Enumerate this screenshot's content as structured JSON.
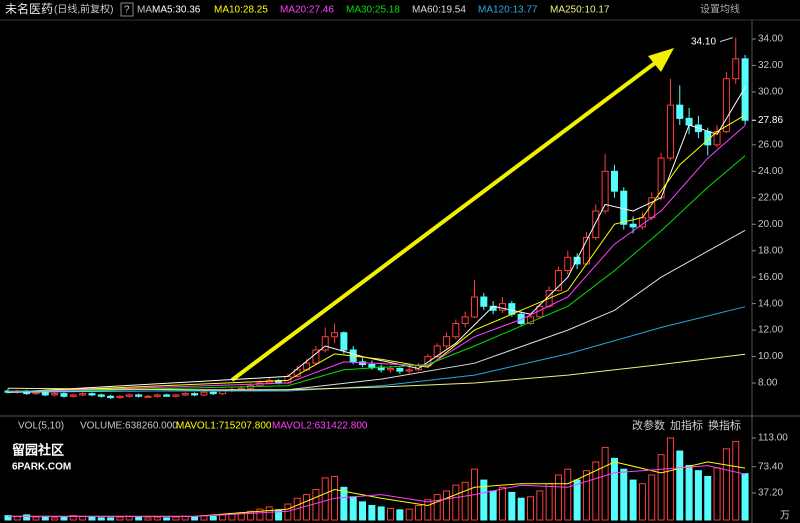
{
  "header": {
    "name": "未名医药",
    "period": "(日线,前复权)",
    "help": "?",
    "ma_prefix": "MA",
    "settings": "设置均线"
  },
  "chart_data": [
    {
      "type": "candlestick",
      "color_up": "#ff3c3c",
      "color_down": "#54fcfc",
      "ylim": [
        6.34,
        34.83
      ],
      "yticks": [
        {
          "value": 8,
          "label": "8.00"
        },
        {
          "value": 10,
          "label": "10.00"
        },
        {
          "value": 12,
          "label": "12.00"
        },
        {
          "value": 14,
          "label": "14.00"
        },
        {
          "value": 16,
          "label": "16.00"
        },
        {
          "value": 18,
          "label": "18.00"
        },
        {
          "value": 20,
          "label": "20.00"
        },
        {
          "value": 22,
          "label": "22.00"
        },
        {
          "value": 24,
          "label": "24.00"
        },
        {
          "value": 26,
          "label": "26.00"
        },
        {
          "value": 30,
          "label": "30.00"
        },
        {
          "value": 32,
          "label": "32.00"
        },
        {
          "value": 34,
          "label": "34.00"
        }
      ],
      "last_price": {
        "value": 27.86,
        "label": "27.86"
      },
      "annotation": {
        "value": 34.1,
        "label": "34.10"
      },
      "candles": [
        [
          7.4,
          7.6,
          7.2,
          7.3
        ],
        [
          7.3,
          7.5,
          7.2,
          7.4
        ],
        [
          7.4,
          7.5,
          7.1,
          7.2
        ],
        [
          7.2,
          7.4,
          7.1,
          7.3
        ],
        [
          7.3,
          7.4,
          7.0,
          7.1
        ],
        [
          7.1,
          7.3,
          7.0,
          7.2
        ],
        [
          7.2,
          7.3,
          6.9,
          7.0
        ],
        [
          7.0,
          7.2,
          6.9,
          7.1
        ],
        [
          7.1,
          7.3,
          7.0,
          7.2
        ],
        [
          7.2,
          7.3,
          7.0,
          7.1
        ],
        [
          7.1,
          7.2,
          6.9,
          7.0
        ],
        [
          7.0,
          7.1,
          6.8,
          6.9
        ],
        [
          6.9,
          7.1,
          6.8,
          7.0
        ],
        [
          7.0,
          7.2,
          6.9,
          7.1
        ],
        [
          7.1,
          7.2,
          6.9,
          7.0
        ],
        [
          7.0,
          7.1,
          6.9,
          7.0
        ],
        [
          7.0,
          7.2,
          6.9,
          7.1
        ],
        [
          7.1,
          7.2,
          7.0,
          7.0
        ],
        [
          7.0,
          7.1,
          6.9,
          7.1
        ],
        [
          7.1,
          7.3,
          7.0,
          7.2
        ],
        [
          7.2,
          7.3,
          7.0,
          7.1
        ],
        [
          7.1,
          7.4,
          7.0,
          7.3
        ],
        [
          7.3,
          7.4,
          7.1,
          7.2
        ],
        [
          7.2,
          7.5,
          7.1,
          7.4
        ],
        [
          7.4,
          7.7,
          7.3,
          7.5
        ],
        [
          7.5,
          7.8,
          7.4,
          7.6
        ],
        [
          7.6,
          8.0,
          7.5,
          7.8
        ],
        [
          7.8,
          8.2,
          7.7,
          8.0
        ],
        [
          8.0,
          8.4,
          7.9,
          8.2
        ],
        [
          8.2,
          8.3,
          7.9,
          8.0
        ],
        [
          8.0,
          8.7,
          7.9,
          8.5
        ],
        [
          8.5,
          9.3,
          8.4,
          9.0
        ],
        [
          9.0,
          9.8,
          8.9,
          9.5
        ],
        [
          9.5,
          10.8,
          9.4,
          10.5
        ],
        [
          10.5,
          12.2,
          10.3,
          11.5
        ],
        [
          11.5,
          12.5,
          11.0,
          11.8
        ],
        [
          11.8,
          11.9,
          10.2,
          10.5
        ],
        [
          10.5,
          10.8,
          9.4,
          9.6
        ],
        [
          9.6,
          9.9,
          9.2,
          9.4
        ],
        [
          9.4,
          9.7,
          9.0,
          9.2
        ],
        [
          9.2,
          9.4,
          8.8,
          9.0
        ],
        [
          9.0,
          9.3,
          8.8,
          9.1
        ],
        [
          9.1,
          9.2,
          8.7,
          8.9
        ],
        [
          8.9,
          9.2,
          8.7,
          9.0
        ],
        [
          9.0,
          9.5,
          8.9,
          9.3
        ],
        [
          9.3,
          10.2,
          9.2,
          10.0
        ],
        [
          10.0,
          11.0,
          9.9,
          10.8
        ],
        [
          10.8,
          11.8,
          10.6,
          11.5
        ],
        [
          11.5,
          12.8,
          11.3,
          12.5
        ],
        [
          12.5,
          13.4,
          12.2,
          13.0
        ],
        [
          13.0,
          15.8,
          12.9,
          14.5
        ],
        [
          14.5,
          14.8,
          13.5,
          13.8
        ],
        [
          13.8,
          14.2,
          13.2,
          13.5
        ],
        [
          13.5,
          14.5,
          13.3,
          14.0
        ],
        [
          14.0,
          14.2,
          13.0,
          13.2
        ],
        [
          13.2,
          13.4,
          12.3,
          12.5
        ],
        [
          12.5,
          13.2,
          12.4,
          13.0
        ],
        [
          13.0,
          14.0,
          12.9,
          13.8
        ],
        [
          13.8,
          15.3,
          13.7,
          15.0
        ],
        [
          15.0,
          16.8,
          14.9,
          16.5
        ],
        [
          16.5,
          18.0,
          16.2,
          17.5
        ],
        [
          17.5,
          17.8,
          16.6,
          17.0
        ],
        [
          17.0,
          19.4,
          16.9,
          19.0
        ],
        [
          19.0,
          21.5,
          18.8,
          21.0
        ],
        [
          21.0,
          25.3,
          20.8,
          24.0
        ],
        [
          24.0,
          24.5,
          22.0,
          22.5
        ],
        [
          22.5,
          22.8,
          19.6,
          20.0
        ],
        [
          20.0,
          20.6,
          19.3,
          19.8
        ],
        [
          19.8,
          20.9,
          19.6,
          20.5
        ],
        [
          20.5,
          22.4,
          20.3,
          22.0
        ],
        [
          22.0,
          25.4,
          21.8,
          25.0
        ],
        [
          25.0,
          31.0,
          24.8,
          29.0
        ],
        [
          29.0,
          30.5,
          27.5,
          28.0
        ],
        [
          28.0,
          28.8,
          26.8,
          27.5
        ],
        [
          27.5,
          28.2,
          26.5,
          27.0
        ],
        [
          27.0,
          27.3,
          25.2,
          26.0
        ],
        [
          26.0,
          27.5,
          25.8,
          27.0
        ],
        [
          27.0,
          31.5,
          26.9,
          31.0
        ],
        [
          31.0,
          34.1,
          30.6,
          32.5
        ],
        [
          32.5,
          32.8,
          27.5,
          27.86
        ]
      ],
      "series": [
        {
          "label": "MA5:30.36",
          "color": "#ffffff",
          "x": [
            0,
            30,
            34,
            38,
            44,
            48,
            52,
            56,
            60,
            64,
            67,
            70,
            73,
            76,
            79
          ],
          "values": [
            7.3,
            8.5,
            10.8,
            10.0,
            9.1,
            11.0,
            13.8,
            13.2,
            16.0,
            21.5,
            21.0,
            22.0,
            27.5,
            26.8,
            30.36
          ]
        },
        {
          "label": "MA10:28.25",
          "color": "#ffff00",
          "x": [
            0,
            30,
            35,
            40,
            45,
            50,
            55,
            60,
            65,
            68,
            72,
            76,
            79
          ],
          "values": [
            7.3,
            8.2,
            10.2,
            9.8,
            9.2,
            12.0,
            13.5,
            15.0,
            20.0,
            20.5,
            24.5,
            27.0,
            28.25
          ]
        },
        {
          "label": "MA20:27.46",
          "color": "#ff40ff",
          "x": [
            0,
            30,
            36,
            45,
            50,
            55,
            60,
            65,
            70,
            75,
            79
          ],
          "values": [
            7.3,
            8.0,
            9.6,
            9.3,
            11.5,
            12.8,
            14.5,
            18.5,
            21.0,
            25.0,
            27.46
          ]
        },
        {
          "label": "MA30:25.18",
          "color": "#00e000",
          "x": [
            0,
            30,
            36,
            45,
            50,
            55,
            60,
            65,
            70,
            75,
            79
          ],
          "values": [
            7.3,
            7.8,
            9.0,
            9.4,
            10.8,
            12.3,
            13.8,
            16.5,
            19.5,
            22.8,
            25.18
          ]
        },
        {
          "label": "MA60:19.54",
          "color": "#dddddd",
          "x": [
            0,
            30,
            40,
            50,
            60,
            65,
            70,
            79
          ],
          "values": [
            7.3,
            7.5,
            8.3,
            9.5,
            12.0,
            13.5,
            16.0,
            19.54
          ]
        },
        {
          "label": "MA120:13.77",
          "color": "#2aa8e0",
          "x": [
            0,
            30,
            40,
            50,
            60,
            70,
            79
          ],
          "values": [
            7.4,
            7.4,
            7.8,
            8.6,
            10.2,
            12.2,
            13.77
          ]
        },
        {
          "label": "MA250:10.17",
          "color": "#f0f080",
          "x": [
            0,
            20,
            30,
            40,
            50,
            60,
            70,
            79
          ],
          "values": [
            7.6,
            7.5,
            7.5,
            7.7,
            8.0,
            8.6,
            9.4,
            10.17
          ]
        }
      ]
    },
    {
      "type": "volume",
      "title": "VOL(5,10)",
      "readout": "VOLUME:638260.000",
      "unit": "万",
      "ylim": [
        0,
        124
      ],
      "yticks": [
        {
          "value": 37.2,
          "label": "37.20"
        },
        {
          "value": 73.4,
          "label": "73.40"
        },
        {
          "value": 113,
          "label": "113.00"
        }
      ],
      "buttons": [
        "改参数",
        "加指标",
        "换指标"
      ],
      "values": [
        6,
        5,
        7,
        4,
        5,
        3,
        4,
        6,
        5,
        4,
        3,
        3,
        4,
        5,
        4,
        3,
        4,
        3,
        4,
        5,
        4,
        6,
        5,
        7,
        9,
        10,
        12,
        15,
        18,
        14,
        22,
        30,
        35,
        42,
        58,
        60,
        45,
        32,
        25,
        20,
        18,
        16,
        14,
        15,
        20,
        28,
        35,
        40,
        48,
        52,
        70,
        55,
        40,
        45,
        38,
        30,
        32,
        40,
        50,
        62,
        70,
        55,
        68,
        80,
        100,
        85,
        70,
        55,
        50,
        62,
        90,
        113,
        95,
        75,
        68,
        60,
        72,
        98,
        108,
        63.826
      ],
      "series": [
        {
          "label": "MAVOL1:715207.800",
          "color": "#ffff00",
          "x": [
            0,
            20,
            30,
            35,
            40,
            45,
            50,
            55,
            60,
            65,
            70,
            75,
            79
          ],
          "values": [
            5,
            5,
            15,
            42,
            30,
            20,
            45,
            50,
            50,
            80,
            65,
            80,
            71.52
          ]
        },
        {
          "label": "MAVOL2:631422.800",
          "color": "#ff40ff",
          "x": [
            0,
            20,
            30,
            35,
            40,
            45,
            50,
            55,
            60,
            65,
            70,
            75,
            79
          ],
          "values": [
            5,
            5,
            12,
            30,
            35,
            25,
            35,
            48,
            45,
            65,
            70,
            75,
            63.14
          ]
        }
      ]
    }
  ],
  "watermark": {
    "line1": "留园社区",
    "line2": "6PARK.COM"
  }
}
